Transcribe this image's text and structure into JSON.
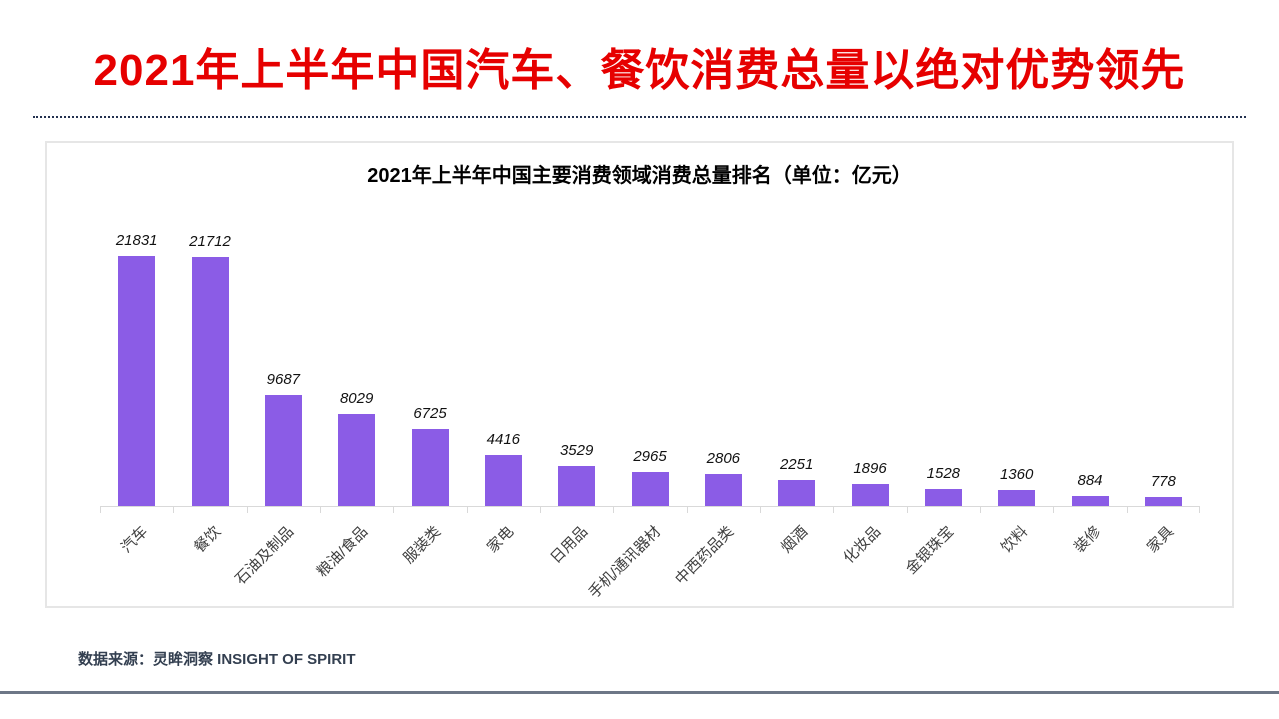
{
  "header": {
    "title": "2021年上半年中国汽车、餐饮消费总量以绝对优势领先",
    "title_color": "#e60000"
  },
  "chart_data": {
    "type": "bar",
    "title": "2021年上半年中国主要消费领域消费总量排名（单位：亿元）",
    "categories": [
      "汽车",
      "餐饮",
      "石油及制品",
      "粮油/食品",
      "服装类",
      "家电",
      "日用品",
      "手机/通讯器材",
      "中西药品类",
      "烟酒",
      "化妆品",
      "金银珠宝",
      "饮料",
      "装修",
      "家具"
    ],
    "values": [
      21831,
      21712,
      9687,
      8029,
      6725,
      4416,
      3529,
      2965,
      2806,
      2251,
      1896,
      1528,
      1360,
      884,
      778
    ],
    "unit": "亿元",
    "bar_color": "#8b5ce6",
    "value_label_style": "italic",
    "xlabel": "",
    "ylabel": "",
    "ylim": [
      0,
      23500
    ],
    "grid": false,
    "legend": "none",
    "category_label_rotation": -45
  },
  "footer": {
    "source": "数据来源：灵眸洞察 INSIGHT OF SPIRIT",
    "rule_color": "#6d7787"
  }
}
